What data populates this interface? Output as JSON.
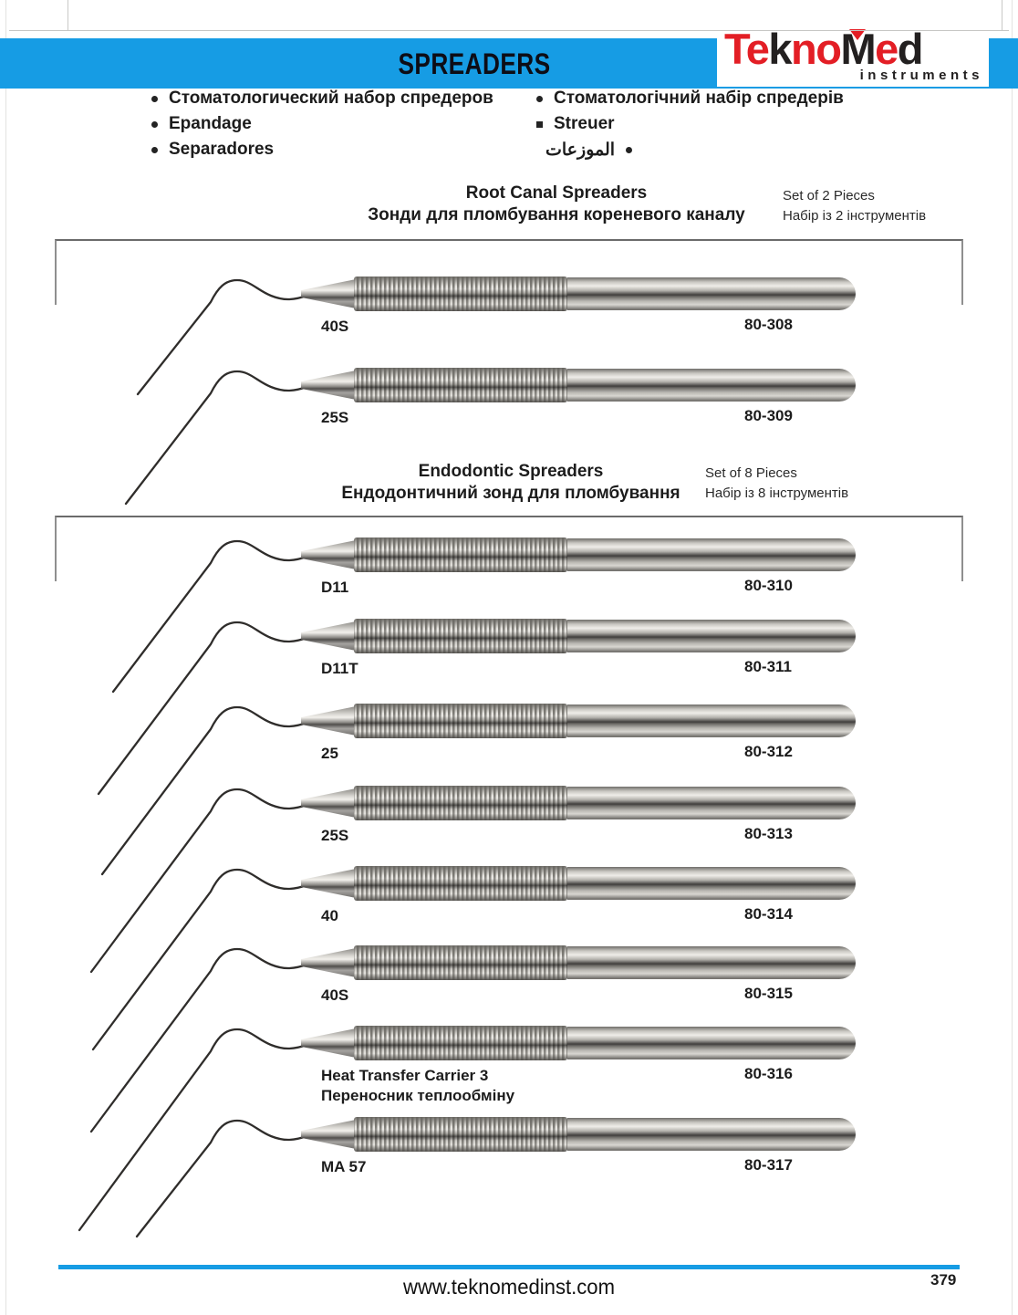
{
  "header": {
    "title": "SPREADERS"
  },
  "logo": {
    "parts": [
      {
        "text": "Te",
        "color": "red"
      },
      {
        "text": "k",
        "color": "dark"
      },
      {
        "text": "no",
        "color": "red"
      },
      {
        "text": "M",
        "color": "dark",
        "triangle": true
      },
      {
        "text": "e",
        "color": "red"
      },
      {
        "text": "d",
        "color": "dark"
      }
    ],
    "subtitle": "instruments"
  },
  "intro": {
    "left": [
      "Стоматологический набор спредеров",
      "Epandage",
      "Separadores"
    ],
    "right": [
      "Стоматологічний набір спредерів",
      "Streuer",
      "الموزعات"
    ]
  },
  "sections": [
    {
      "title_en": "Root Canal Spreaders",
      "title_uk": "Зонди для пломбування кореневого каналу",
      "set_en": "Set of 2 Pieces",
      "set_uk": "Набір із 2 інструментів",
      "items": [
        {
          "tip": "40S",
          "code": "80-308"
        },
        {
          "tip": "25S",
          "code": "80-309"
        }
      ]
    },
    {
      "title_en": "Endodontic Spreaders",
      "title_uk": "Ендодонтичний зонд для пломбування",
      "set_en": "Set of 8 Pieces",
      "set_uk": "Набір із 8 інструментів",
      "items": [
        {
          "tip": "D11",
          "code": "80-310"
        },
        {
          "tip": "D11T",
          "code": "80-311"
        },
        {
          "tip": "25",
          "code": "80-312"
        },
        {
          "tip": "25S",
          "code": "80-313"
        },
        {
          "tip": "40",
          "code": "80-314"
        },
        {
          "tip": "40S",
          "code": "80-315"
        },
        {
          "tip": "Heat Transfer Carrier 3",
          "tip2": "Переносник теплообміну",
          "code": "80-316"
        },
        {
          "tip": "MA 57",
          "code": "80-317"
        }
      ]
    }
  ],
  "footer": {
    "website": "www.teknomedinst.com",
    "page_number": "379"
  },
  "colors": {
    "accent_blue": "#169CE4",
    "logo_red": "#E31E25"
  }
}
